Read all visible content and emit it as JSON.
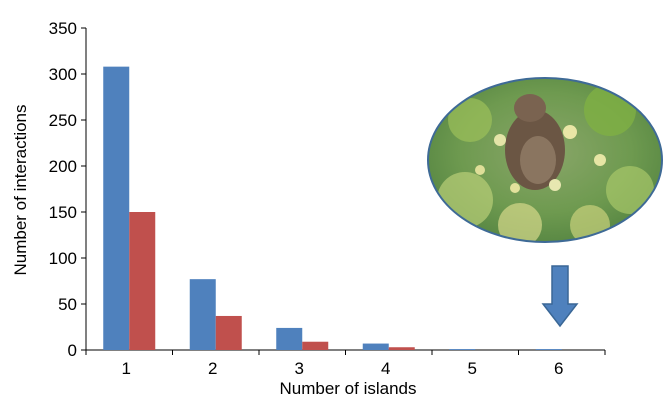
{
  "chart_data": {
    "type": "bar",
    "xlabel": "Number of islands",
    "ylabel": "Number of interactions",
    "categories": [
      "1",
      "2",
      "3",
      "4",
      "5",
      "6"
    ],
    "ylim": [
      0,
      350
    ],
    "yticks": [
      "0",
      "50",
      "100",
      "150",
      "200",
      "250",
      "300",
      "350"
    ],
    "series": [
      {
        "color": "#4F81BD",
        "values": [
          308,
          77,
          24,
          7,
          1,
          1
        ]
      },
      {
        "color": "#C0504D",
        "values": [
          150,
          37,
          9,
          3,
          0,
          0
        ]
      }
    ],
    "grid": false,
    "legend": "none",
    "inset": {
      "image": "bird-in-foliage-photo",
      "shape": "ellipse",
      "annotation": "down-arrow-pointing-to-category-6",
      "arrow_color": "#4F81BD"
    }
  }
}
